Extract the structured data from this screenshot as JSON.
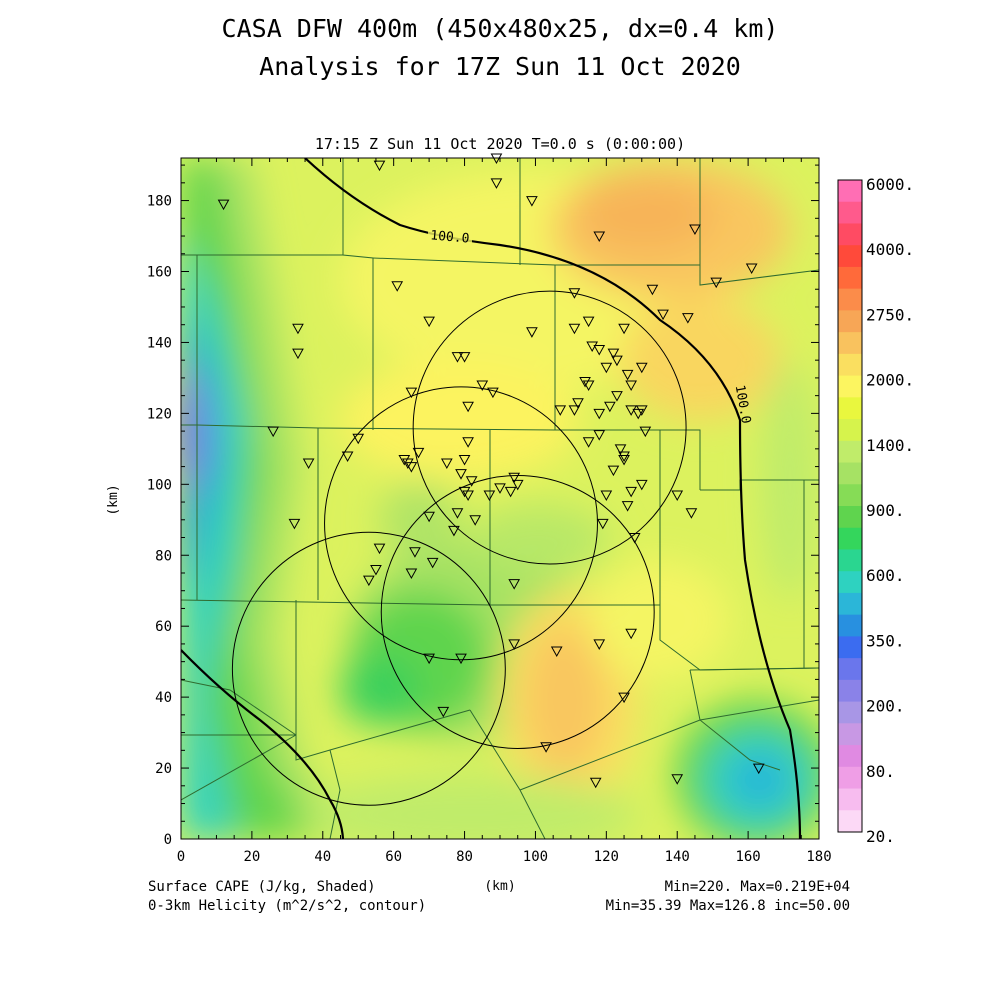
{
  "title_line1": "CASA DFW 400m (450x480x25, dx=0.4 km)",
  "title_line2": "Analysis for 17Z Sun 11 Oct 2020",
  "subtitle": "17:15 Z Sun 11 Oct 2020   T=0.0 s (0:00:00)",
  "axes": {
    "xlabel": "(km)",
    "ylabel": "(km)",
    "xlim": [
      0,
      180
    ],
    "ylim": [
      0,
      192
    ],
    "xticks": [
      "0",
      "20",
      "40",
      "60",
      "80",
      "100",
      "120",
      "140",
      "160",
      "180"
    ],
    "yticks": [
      "0",
      "20",
      "40",
      "60",
      "80",
      "100",
      "120",
      "140",
      "160",
      "180"
    ]
  },
  "colorbar": {
    "labels": [
      "6000.",
      "4000.",
      "2750.",
      "2000.",
      "1400.",
      "900.",
      "600.",
      "350.",
      "200.",
      "80.",
      "20."
    ],
    "colors": [
      "#ff6eb4",
      "#ff5a8c",
      "#ff4b63",
      "#ff4a3a",
      "#ff6a3a",
      "#fb8c4a",
      "#f7a656",
      "#f9c25e",
      "#fadf60",
      "#fcf560",
      "#e9f73e",
      "#d6f34c",
      "#c0ec6a",
      "#a6e264",
      "#86dc56",
      "#5fd44e",
      "#34d65c",
      "#2ad690",
      "#2ed2c0",
      "#2bb6d8",
      "#2890e0",
      "#3b6cf0",
      "#6a76ec",
      "#8a82e8",
      "#a896e6",
      "#c898e4",
      "#e08ae2",
      "#ef9ee6",
      "#f7bcef",
      "#fcd9f6"
    ]
  },
  "footer": {
    "left_line1": "Surface CAPE (J/kg, Shaded)",
    "left_line2": "0-3km Helicity (m^2/s^2, contour)",
    "center": "(km)",
    "right_line1": "Min=220. Max=0.219E+04",
    "right_line2": "Min=35.39 Max=126.8 inc=50.00"
  },
  "map_data": {
    "shaded_field": "Surface CAPE",
    "contour_field": "0-3km Helicity",
    "contour_labels": [
      "100.0",
      "100.0"
    ],
    "radar_range_rings": [
      {
        "center_km": [
          104,
          116
        ]
      },
      {
        "center_km": [
          79,
          89
        ]
      },
      {
        "center_km": [
          95,
          64
        ]
      },
      {
        "center_km": [
          53,
          48
        ]
      }
    ],
    "stations_km": [
      [
        12,
        179
      ],
      [
        56,
        190
      ],
      [
        89,
        192
      ],
      [
        89,
        185
      ],
      [
        99,
        180
      ],
      [
        118,
        170
      ],
      [
        145,
        172
      ],
      [
        161,
        161
      ],
      [
        151,
        157
      ],
      [
        133,
        155
      ],
      [
        61,
        156
      ],
      [
        111,
        154
      ],
      [
        136,
        148
      ],
      [
        143,
        147
      ],
      [
        33,
        144
      ],
      [
        70,
        146
      ],
      [
        99,
        143
      ],
      [
        115,
        146
      ],
      [
        111,
        144
      ],
      [
        125,
        144
      ],
      [
        33,
        137
      ],
      [
        78,
        136
      ],
      [
        80,
        136
      ],
      [
        116,
        139
      ],
      [
        118,
        138
      ],
      [
        122,
        137
      ],
      [
        123,
        135
      ],
      [
        130,
        133
      ],
      [
        120,
        133
      ],
      [
        126,
        131
      ],
      [
        127,
        128
      ],
      [
        114,
        129
      ],
      [
        115,
        128
      ],
      [
        85,
        128
      ],
      [
        88,
        126
      ],
      [
        65,
        126
      ],
      [
        123,
        125
      ],
      [
        81,
        122
      ],
      [
        107,
        121
      ],
      [
        111,
        121
      ],
      [
        112,
        123
      ],
      [
        118,
        120
      ],
      [
        121,
        122
      ],
      [
        127,
        121
      ],
      [
        129,
        120
      ],
      [
        130,
        121
      ],
      [
        131,
        115
      ],
      [
        26,
        115
      ],
      [
        50,
        113
      ],
      [
        47,
        108
      ],
      [
        36,
        106
      ],
      [
        63,
        107
      ],
      [
        64,
        106
      ],
      [
        65,
        105
      ],
      [
        67,
        109
      ],
      [
        75,
        106
      ],
      [
        80,
        107
      ],
      [
        81,
        112
      ],
      [
        79,
        103
      ],
      [
        82,
        101
      ],
      [
        94,
        102
      ],
      [
        95,
        100
      ],
      [
        93,
        98
      ],
      [
        80,
        98
      ],
      [
        81,
        97
      ],
      [
        87,
        97
      ],
      [
        90,
        99
      ],
      [
        115,
        112
      ],
      [
        118,
        114
      ],
      [
        124,
        110
      ],
      [
        125,
        108
      ],
      [
        125,
        107
      ],
      [
        122,
        104
      ],
      [
        127,
        98
      ],
      [
        130,
        100
      ],
      [
        126,
        94
      ],
      [
        120,
        97
      ],
      [
        119,
        89
      ],
      [
        128,
        85
      ],
      [
        140,
        97
      ],
      [
        144,
        92
      ],
      [
        32,
        89
      ],
      [
        70,
        91
      ],
      [
        77,
        87
      ],
      [
        66,
        81
      ],
      [
        65,
        75
      ],
      [
        55,
        76
      ],
      [
        56,
        82
      ],
      [
        53,
        73
      ],
      [
        71,
        78
      ],
      [
        94,
        72
      ],
      [
        94,
        55
      ],
      [
        106,
        53
      ],
      [
        118,
        55
      ],
      [
        127,
        58
      ],
      [
        125,
        40
      ],
      [
        79,
        51
      ],
      [
        70,
        51
      ],
      [
        74,
        36
      ],
      [
        103,
        26
      ],
      [
        117,
        16
      ],
      [
        140,
        17
      ],
      [
        163,
        20
      ],
      [
        78,
        92
      ],
      [
        83,
        90
      ]
    ]
  }
}
